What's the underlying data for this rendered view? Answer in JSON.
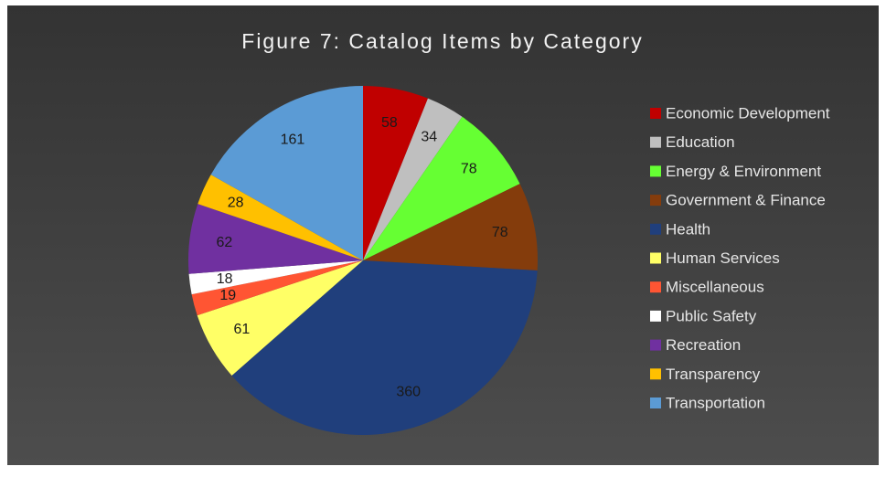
{
  "chart_data": {
    "type": "pie",
    "title": "Figure 7:  Catalog Items by Category",
    "categories": [
      "Economic Development",
      "Education",
      "Energy & Environment",
      "Government & Finance",
      "Health",
      "Human Services",
      "Miscellaneous",
      "Public Safety",
      "Recreation",
      "Transparency",
      "Transportation"
    ],
    "values": [
      58,
      34,
      78,
      78,
      360,
      61,
      19,
      18,
      62,
      28,
      161
    ],
    "colors": [
      "#c00000",
      "#bfbfbf",
      "#66ff33",
      "#843c0c",
      "#203f7c",
      "#ffff66",
      "#ff5533",
      "#ffffff",
      "#7030a0",
      "#ffc000",
      "#5b9bd5"
    ],
    "legend": "right"
  }
}
